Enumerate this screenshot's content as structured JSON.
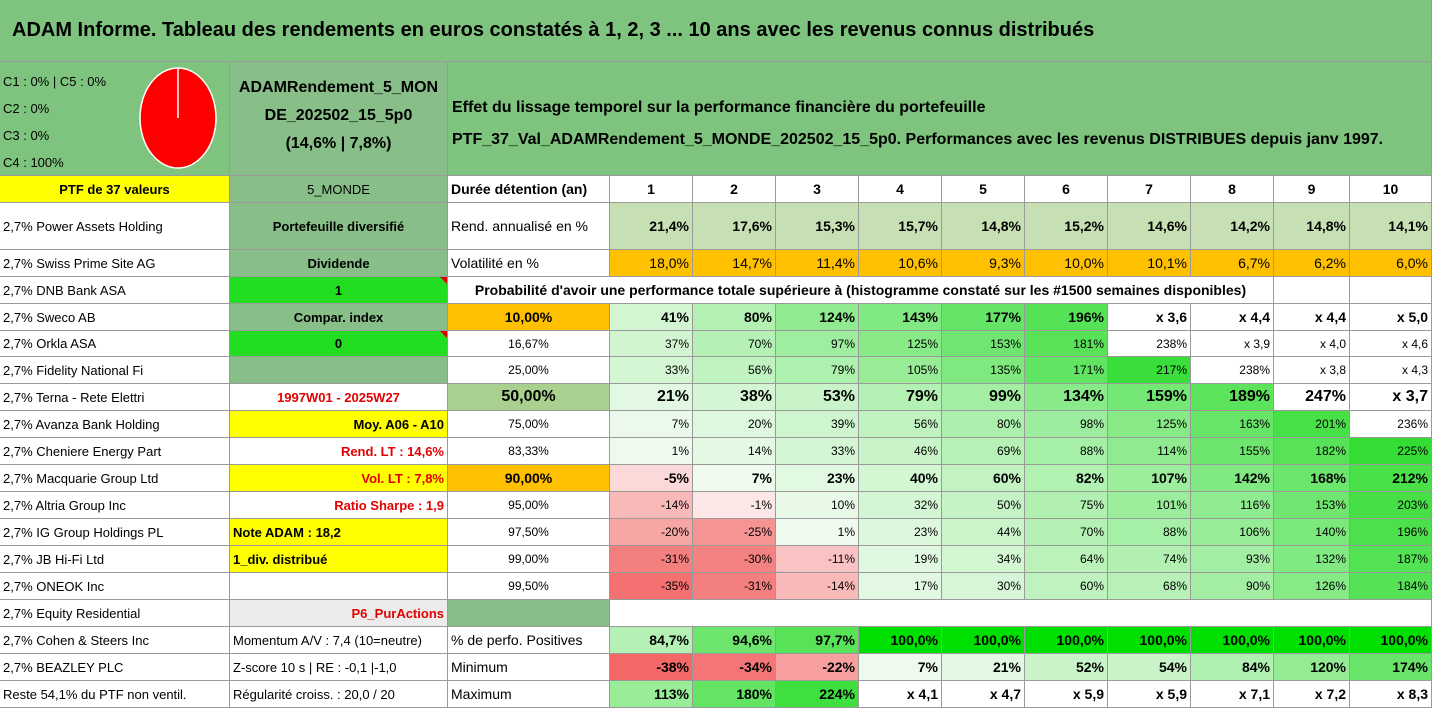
{
  "title": "ADAM Informe. Tableau des rendements en euros constatés à 1, 2, 3 ... 10 ans avec les revenus connus distribués",
  "allocation": {
    "lines": [
      "C1 : 0% | C5 : 0%",
      "C2 : 0%",
      "C3 : 0%",
      "C4 : 100%"
    ],
    "pie_color": "#ff0000",
    "slices": [
      {
        "label": "C4",
        "value": 100
      }
    ]
  },
  "portfolio": {
    "name_line1": "ADAMRendement_5_MON",
    "name_line2": "DE_202502_15_5p0",
    "name_line3": "(14,6% | 7,8%)"
  },
  "description": {
    "line1": "Effet du lissage temporel sur la performance financière du portefeuille",
    "line2": "PTF_37_Val_ADAMRendement_5_MONDE_202502_15_5p0. Performances avec les revenus DISTRIBUES depuis janv 1997."
  },
  "ptf_label": "PTF de 37 valeurs",
  "universe": "5_MONDE",
  "duree_label": "Durée détention (an)",
  "horizons": [
    "1",
    "2",
    "3",
    "4",
    "5",
    "6",
    "7",
    "8",
    "9",
    "10"
  ],
  "holdings": [
    "2,7% Power Assets Holding",
    "2,7% Swiss Prime Site AG",
    "2,7% DNB Bank ASA",
    "2,7% Sweco AB",
    "2,7% Orkla ASA",
    "2,7% Fidelity National Fi",
    "2,7% Terna - Rete Elettri",
    "2,7% Avanza Bank Holding",
    "2,7% Cheniere Energy Part",
    "2,7% Macquarie Group Ltd",
    "2,7% Altria Group Inc",
    "2,7% IG Group Holdings PL",
    "2,7% JB Hi-Fi Ltd",
    "2,7% ONEOK Inc",
    "2,7% Equity Residential",
    "2,7% Cohen & Steers Inc",
    "2,7% BEAZLEY PLC",
    "Reste 54,1% du PTF non ventil."
  ],
  "info": {
    "portefeuille": "Portefeuille diversifié",
    "dividende": "Dividende",
    "dividende_value": "1",
    "compar": "Compar. index",
    "compar_value": "0",
    "period": "1997W01 - 2025W27",
    "moy": "Moy. A06 - A10",
    "rend_lt": "Rend. LT : 14,6%",
    "vol_lt": "Vol. LT : 7,8%",
    "sharpe": "Ratio Sharpe : 1,9",
    "note": "Note ADAM : 18,2",
    "div": "1_div. distribué",
    "p6": "P6_PurActions",
    "momentum": "Momentum A/V : 7,4 (10=neutre)",
    "zscore": "Z-score 10 s | RE : -0,1 |-1,0",
    "regularite": "Régularité croiss. : 20,0 / 20"
  },
  "rend": {
    "label": "Rend. annualisé en %",
    "values": [
      "21,4%",
      "17,6%",
      "15,3%",
      "15,7%",
      "14,8%",
      "15,2%",
      "14,6%",
      "14,2%",
      "14,8%",
      "14,1%"
    ]
  },
  "vol": {
    "label": "Volatilité en %",
    "values": [
      "18,0%",
      "14,7%",
      "11,4%",
      "10,6%",
      "9,3%",
      "10,0%",
      "10,1%",
      "6,7%",
      "6,2%",
      "6,0%"
    ]
  },
  "proba_title": "Probabilité d'avoir une performance totale supérieure à (histogramme constaté sur les #1500 semaines disponibles)",
  "proba_rows": [
    {
      "p": "10,00%",
      "values": [
        "41%",
        "80%",
        "124%",
        "143%",
        "177%",
        "196%",
        "x 3,6",
        "x 4,4",
        "x 4,4",
        "x 5,0"
      ]
    },
    {
      "p": "16,67%",
      "values": [
        "37%",
        "70%",
        "97%",
        "125%",
        "153%",
        "181%",
        "238%",
        "x 3,9",
        "x 4,0",
        "x 4,6"
      ]
    },
    {
      "p": "25,00%",
      "values": [
        "33%",
        "56%",
        "79%",
        "105%",
        "135%",
        "171%",
        "217%",
        "238%",
        "x 3,8",
        "x 4,3"
      ]
    },
    {
      "p": "50,00%",
      "values": [
        "21%",
        "38%",
        "53%",
        "79%",
        "99%",
        "134%",
        "159%",
        "189%",
        "247%",
        "x 3,7"
      ]
    },
    {
      "p": "75,00%",
      "values": [
        "7%",
        "20%",
        "39%",
        "56%",
        "80%",
        "98%",
        "125%",
        "163%",
        "201%",
        "236%"
      ]
    },
    {
      "p": "83,33%",
      "values": [
        "1%",
        "14%",
        "33%",
        "46%",
        "69%",
        "88%",
        "114%",
        "155%",
        "182%",
        "225%"
      ]
    },
    {
      "p": "90,00%",
      "values": [
        "-5%",
        "7%",
        "23%",
        "40%",
        "60%",
        "82%",
        "107%",
        "142%",
        "168%",
        "212%"
      ]
    },
    {
      "p": "95,00%",
      "values": [
        "-14%",
        "-1%",
        "10%",
        "32%",
        "50%",
        "75%",
        "101%",
        "116%",
        "153%",
        "203%"
      ]
    },
    {
      "p": "97,50%",
      "values": [
        "-20%",
        "-25%",
        "1%",
        "23%",
        "44%",
        "70%",
        "88%",
        "106%",
        "140%",
        "196%"
      ]
    },
    {
      "p": "99,00%",
      "values": [
        "-31%",
        "-30%",
        "-11%",
        "19%",
        "34%",
        "64%",
        "74%",
        "93%",
        "132%",
        "187%"
      ]
    },
    {
      "p": "99,50%",
      "values": [
        "-35%",
        "-31%",
        "-14%",
        "17%",
        "30%",
        "60%",
        "68%",
        "90%",
        "126%",
        "184%"
      ]
    }
  ],
  "positives": {
    "label": "% de perfo. Positives",
    "values": [
      "84,7%",
      "94,6%",
      "97,7%",
      "100,0%",
      "100,0%",
      "100,0%",
      "100,0%",
      "100,0%",
      "100,0%",
      "100,0%"
    ]
  },
  "minimum": {
    "label": "Minimum",
    "values": [
      "-38%",
      "-34%",
      "-22%",
      "7%",
      "21%",
      "52%",
      "54%",
      "84%",
      "120%",
      "174%"
    ]
  },
  "maximum": {
    "label": "Maximum",
    "values": [
      "113%",
      "180%",
      "224%",
      "x 4,1",
      "x 4,7",
      "x 5,9",
      "x 5,9",
      "x 7,1",
      "x 7,2",
      "x 8,3"
    ]
  },
  "colors": {
    "header_green": "#7ec47e",
    "mid_green": "#88bf88",
    "yellow": "#ffff00",
    "bright_green": "#22dd22",
    "orange": "#ffc000",
    "rend_green": "#c6e0b4",
    "pos_green": "#00e000",
    "light_gray": "#ececec",
    "red_text": "#e30000"
  }
}
